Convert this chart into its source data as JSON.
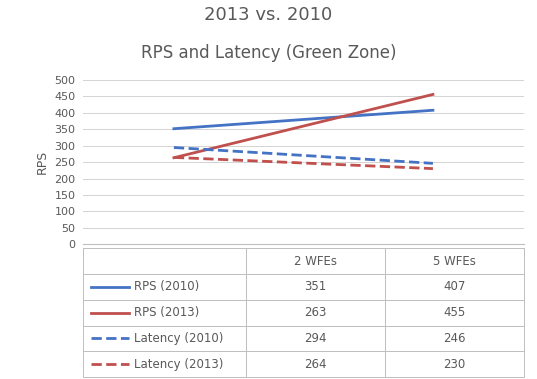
{
  "title_line1": "2013 vs. 2010",
  "title_line2": "RPS and Latency (Green Zone)",
  "x_labels": [
    "2 WFEs",
    "5 WFEs"
  ],
  "x_positions": [
    1,
    2
  ],
  "series_order": [
    "RPS (2010)",
    "RPS (2013)",
    "Latency (2010)",
    "Latency (2013)"
  ],
  "series": {
    "RPS (2010)": {
      "values": [
        351,
        407
      ],
      "color": "#4472C4",
      "linestyle": "solid",
      "linewidth": 2.0
    },
    "RPS (2013)": {
      "values": [
        263,
        455
      ],
      "color": "#C0504D",
      "linestyle": "solid",
      "linewidth": 2.0
    },
    "Latency (2010)": {
      "values": [
        294,
        246
      ],
      "color": "#4472C4",
      "linestyle": "dashed",
      "linewidth": 2.0
    },
    "Latency (2013)": {
      "values": [
        264,
        230
      ],
      "color": "#C0504D",
      "linestyle": "dashed",
      "linewidth": 2.0
    }
  },
  "table_columns": [
    "2 WFEs",
    "5 WFEs"
  ],
  "table_rows": {
    "RPS (2010)": [
      351,
      407
    ],
    "RPS (2013)": [
      263,
      455
    ],
    "Latency (2010)": [
      294,
      246
    ],
    "Latency (2013)": [
      264,
      230
    ]
  },
  "ylabel": "RPS",
  "ylim": [
    0,
    500
  ],
  "yticks": [
    0,
    50,
    100,
    150,
    200,
    250,
    300,
    350,
    400,
    450,
    500
  ],
  "background_color": "#FFFFFF",
  "grid_color": "#D3D3D3",
  "border_color": "#BFBFBF",
  "text_color": "#595959",
  "title1_fontsize": 13,
  "title2_fontsize": 12,
  "tick_fontsize": 8,
  "table_fontsize": 8.5
}
